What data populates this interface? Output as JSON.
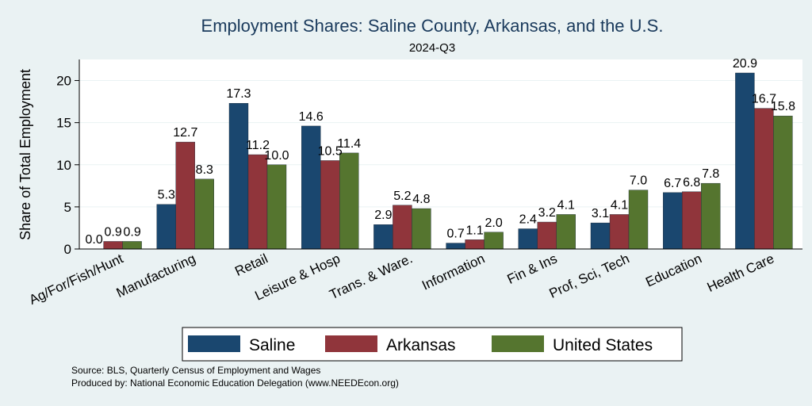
{
  "chart_data": {
    "type": "bar",
    "title": "Employment Shares: Saline County, Arkansas, and the U.S.",
    "subtitle": "2024-Q3",
    "ylabel": "Share of Total Employment",
    "xlabel": "",
    "ylim": [
      0,
      22.5
    ],
    "yticks": [
      0,
      5,
      10,
      15,
      20
    ],
    "grid": true,
    "legend_position": "bottom",
    "categories": [
      "Ag/For/Fish/Hunt",
      "Manufacturing",
      "Retail",
      "Leisure & Hosp",
      "Trans. & Ware.",
      "Information",
      "Fin & Ins",
      "Prof, Sci, Tech",
      "Education",
      "Health Care"
    ],
    "series": [
      {
        "name": "Saline",
        "color": "#1a476f",
        "values": [
          0.0,
          5.3,
          17.3,
          14.6,
          2.9,
          0.7,
          2.4,
          3.1,
          6.7,
          20.9
        ],
        "labels": [
          "0.0",
          "5.3",
          "17.3",
          "14.6",
          "2.9",
          "0.7",
          "2.4",
          "3.1",
          "6.7",
          "20.9"
        ]
      },
      {
        "name": "Arkansas",
        "color": "#90353b",
        "values": [
          0.9,
          12.7,
          11.2,
          10.5,
          5.2,
          1.1,
          3.2,
          4.1,
          6.8,
          16.7
        ],
        "labels": [
          "0.9",
          "12.7",
          "11.2",
          "10.5",
          "5.2",
          "1.1",
          "3.2",
          "4.1",
          "6.8",
          "16.7"
        ]
      },
      {
        "name": "United States",
        "color": "#55752f",
        "values": [
          0.9,
          8.3,
          10.0,
          11.4,
          4.8,
          2.0,
          4.1,
          7.0,
          7.8,
          15.8
        ],
        "labels": [
          "0.9",
          "8.3",
          "10.0",
          "11.4",
          "4.8",
          "2.0",
          "4.1",
          "7.0",
          "7.8",
          "15.8"
        ]
      }
    ],
    "source_lines": [
      "Source: BLS, Quarterly Census of Employment and Wages",
      "Produced by: National Economic Education Delegation (www.NEEDEcon.org)"
    ]
  }
}
